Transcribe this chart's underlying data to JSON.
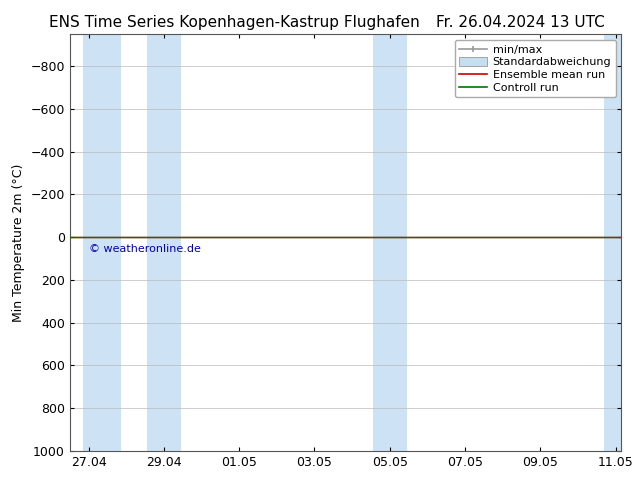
{
  "title_left": "ENS Time Series Kopenhagen-Kastrup Flughafen",
  "title_right": "Fr. 26.04.2024 13 UTC",
  "ylabel": "Min Temperature 2m (°C)",
  "ylim_top": -950,
  "ylim_bottom": 1000,
  "yticks": [
    -800,
    -600,
    -400,
    -200,
    0,
    200,
    400,
    600,
    800,
    1000
  ],
  "x_labels": [
    "27.04",
    "29.04",
    "01.05",
    "03.05",
    "05.05",
    "07.05",
    "09.05",
    "11.05"
  ],
  "x_tick_positions": [
    0,
    2,
    4,
    6,
    8,
    10,
    12,
    14
  ],
  "x_total": 14,
  "shaded_bands": [
    {
      "xmin": -0.15,
      "xmax": 0.85
    },
    {
      "xmin": 1.55,
      "xmax": 2.45
    },
    {
      "xmin": 7.55,
      "xmax": 8.45
    },
    {
      "xmin": 13.7,
      "xmax": 14.15
    }
  ],
  "shaded_color": "#cde3f5",
  "line_y": 0,
  "control_run_color": "#007700",
  "ensemble_mean_color": "#cc0000",
  "copyright_text": "© weatheronline.de",
  "copyright_color": "#0000bb",
  "legend_items": [
    "min/max",
    "Standardabweichung",
    "Ensemble mean run",
    "Controll run"
  ],
  "background_color": "#ffffff",
  "plot_bg_color": "#ffffff",
  "grid_color": "#bbbbbb",
  "border_color": "#555555",
  "title_fontsize": 11,
  "ylabel_fontsize": 9,
  "tick_fontsize": 9,
  "minmax_color": "#999999",
  "stddev_color": "#c5dff0",
  "legend_fontsize": 8
}
